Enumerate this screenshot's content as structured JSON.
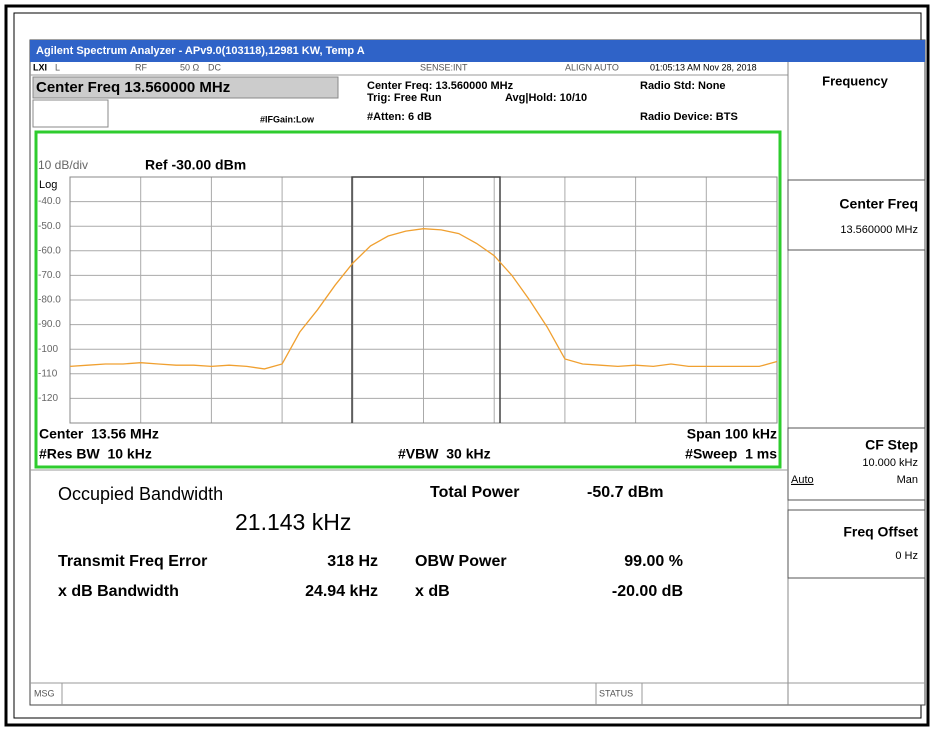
{
  "title_bar": "Agilent Spectrum Analyzer - APv9.0(103118),12981 KW, Temp A",
  "status": {
    "lxi": "LXI",
    "l": "L",
    "rf": "RF",
    "impedance": "50 Ω",
    "coupling": "DC",
    "sense": "SENSE:INT",
    "align": "ALIGN AUTO",
    "datetime": "01:05:13 AM Nov 28, 2018"
  },
  "header": {
    "center_freq_box": "Center Freq 13.560000 MHz",
    "center_freq": "Center Freq: 13.560000 MHz",
    "trig": "Trig: Free Run",
    "avg": "Avg|Hold: 10/10",
    "atten": "#Atten: 6 dB",
    "ifgain": "#IFGain:Low",
    "radio_std": "Radio Std: None",
    "radio_device": "Radio Device: BTS"
  },
  "chart_data": {
    "type": "line",
    "scale": "10 dB/div",
    "ref": "Ref -30.00 dBm",
    "log": "Log",
    "color": "#f0a030",
    "xlim": [
      13.51,
      13.61
    ],
    "x": [
      13.51,
      13.5125,
      13.515,
      13.5175,
      13.52,
      13.5225,
      13.525,
      13.5275,
      13.53,
      13.5325,
      13.535,
      13.5375,
      13.54,
      13.5425,
      13.545,
      13.5475,
      13.55,
      13.5525,
      13.555,
      13.5575,
      13.56,
      13.5625,
      13.565,
      13.5675,
      13.57,
      13.5725,
      13.575,
      13.5775,
      13.58,
      13.5825,
      13.585,
      13.5875,
      13.59,
      13.5925,
      13.595,
      13.5975,
      13.6,
      13.6025,
      13.605,
      13.6075,
      13.61
    ],
    "values": [
      -107,
      -106.5,
      -106,
      -106,
      -105.5,
      -106,
      -106.5,
      -106.5,
      -107,
      -106.5,
      -107,
      -108,
      -106,
      -93,
      -84,
      -74,
      -65,
      -58,
      -54,
      -52,
      -51,
      -51.5,
      -53,
      -57,
      -62,
      -70,
      -80,
      -91,
      -104,
      -106,
      -106.5,
      -107,
      -106.5,
      -107,
      -106,
      -107,
      -107,
      -107,
      -107,
      -107,
      -105
    ],
    "ylim": [
      -30,
      -130
    ],
    "yticks": [
      {
        "value": -40,
        "label": "-40.0"
      },
      {
        "value": -50,
        "label": "-50.0"
      },
      {
        "value": -60,
        "label": "-60.0"
      },
      {
        "value": -70,
        "label": "-70.0"
      },
      {
        "value": -80,
        "label": "-80.0"
      },
      {
        "value": -90,
        "label": "-90.0"
      },
      -100,
      -110,
      -120
    ],
    "center": "Center  13.56 MHz",
    "res_bw": "#Res BW  10 kHz",
    "vbw": "#VBW  30 kHz",
    "span": "Span 100 kHz",
    "sweep": "#Sweep  1 ms"
  },
  "results": {
    "occupied_bw_label": "Occupied Bandwidth",
    "occupied_bw": "21.143 kHz",
    "total_power_label": "Total Power",
    "total_power": "-50.7 dBm",
    "tfe_label": "Transmit Freq Error",
    "tfe": "318 Hz",
    "obw_power_label": "OBW Power",
    "obw_power": "99.00 %",
    "xdb_bw_label": "x dB Bandwidth",
    "xdb_bw": "24.94 kHz",
    "xdb_label": "x dB",
    "xdb": "-20.00 dB"
  },
  "softkeys": {
    "menu": "Frequency",
    "center_freq": {
      "label": "Center Freq",
      "value": "13.560000 MHz"
    },
    "cf_step": {
      "label": "CF Step",
      "value": "10.000 kHz",
      "auto": "Auto",
      "man": "Man"
    },
    "freq_offset": {
      "label": "Freq Offset",
      "value": "0 Hz"
    }
  },
  "status_bar": {
    "msg": "MSG",
    "status": "STATUS"
  }
}
